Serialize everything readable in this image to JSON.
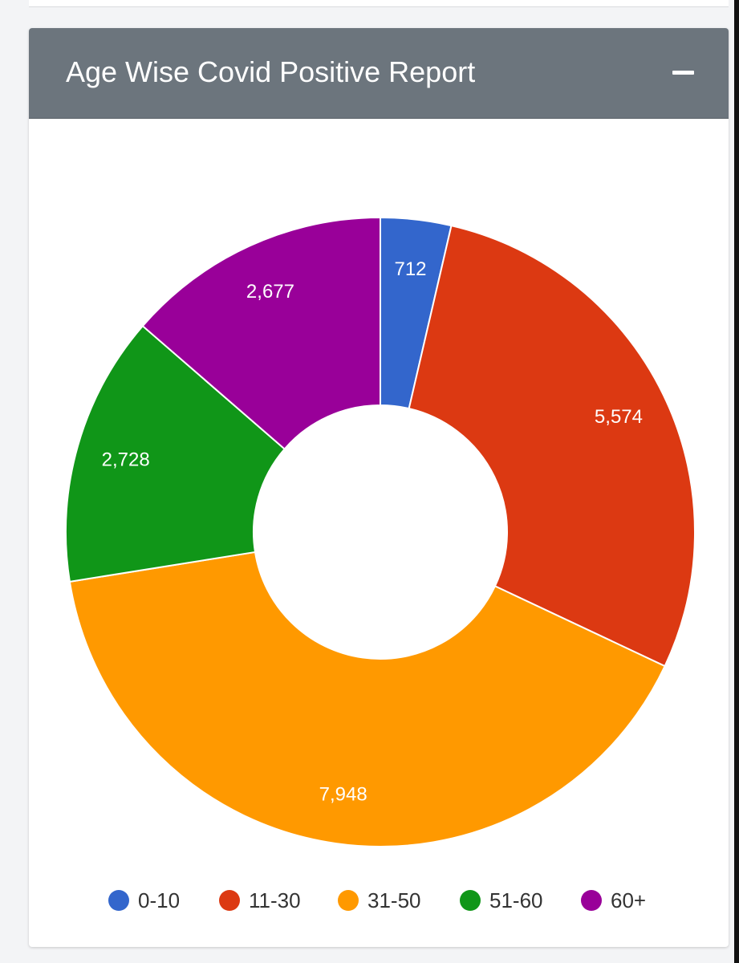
{
  "card": {
    "title": "Age Wise Covid Positive Report"
  },
  "chart_data": {
    "type": "pie",
    "donut": true,
    "title": "Age Wise Covid Positive Report",
    "categories": [
      "0-10",
      "11-30",
      "31-50",
      "51-60",
      "60+"
    ],
    "values": [
      712,
      5574,
      7948,
      2728,
      2677
    ],
    "value_labels": [
      "712",
      "5,574",
      "7,948",
      "2,728",
      "2,677"
    ],
    "colors": [
      "#3366cc",
      "#dc3912",
      "#ff9900",
      "#109618",
      "#990099"
    ],
    "legend_placement": "bottom",
    "start_angle": "top",
    "direction": "clockwise"
  }
}
